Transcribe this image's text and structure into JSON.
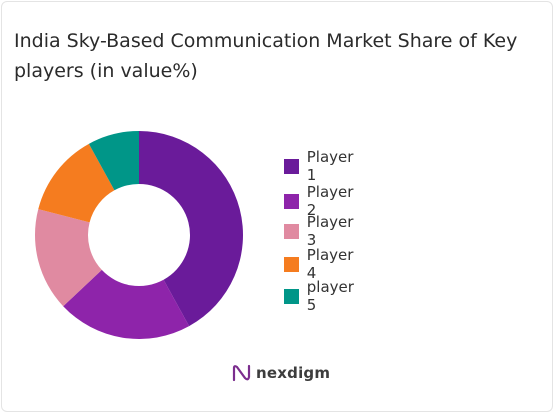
{
  "chart_data": {
    "type": "pie",
    "title": "India Sky-Based Communication Market Share of Key players (in value%)",
    "categories": [
      "Player 1",
      "Player 2",
      "Player 3",
      "Player 4",
      "player 5"
    ],
    "values": [
      42,
      21,
      16,
      13,
      8
    ],
    "colors": [
      "#6a1b9a",
      "#8e24aa",
      "#e08aa1",
      "#f57c1f",
      "#009688"
    ],
    "legend_position": "right",
    "style": "donut"
  },
  "brand": {
    "name": "nexdigm",
    "icon": "nexdigm-logo-icon"
  }
}
